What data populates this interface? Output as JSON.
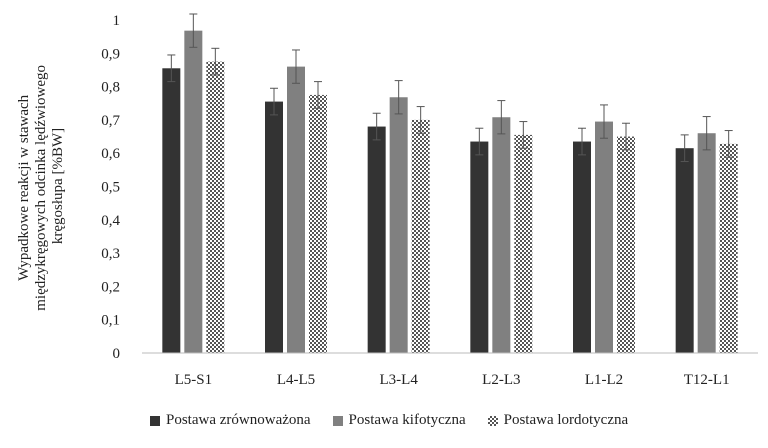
{
  "chart_data": {
    "type": "bar",
    "ylabel_lines": [
      "Wypadkowe reakcji w stawach",
      "międzykręgowych odcinka lędźwiowego",
      "kręgosłupa [%BW]"
    ],
    "categories": [
      "L5-S1",
      "L4-L5",
      "L3-L4",
      "L2-L3",
      "L1-L2",
      "T12-L1"
    ],
    "ylim": [
      0,
      1
    ],
    "yticks": [
      "0",
      "0,1",
      "0,2",
      "0,3",
      "0,4",
      "0,5",
      "0,6",
      "0,7",
      "0,8",
      "0,9",
      "1"
    ],
    "grid": false,
    "legend_position": "bottom",
    "series": [
      {
        "name": "Postawa zrównoważona",
        "color": "#333333",
        "pattern": "solid",
        "values": [
          0.855,
          0.755,
          0.68,
          0.635,
          0.635,
          0.615
        ],
        "errors": [
          0.04,
          0.04,
          0.04,
          0.04,
          0.04,
          0.04
        ]
      },
      {
        "name": "Postawa kifotyczna",
        "color": "#808080",
        "pattern": "solid",
        "values": [
          0.968,
          0.86,
          0.768,
          0.708,
          0.695,
          0.66
        ],
        "errors": [
          0.05,
          0.05,
          0.05,
          0.05,
          0.05,
          0.05
        ]
      },
      {
        "name": "Postawa lordotyczna",
        "color": "#555555",
        "pattern": "checker",
        "values": [
          0.875,
          0.775,
          0.7,
          0.655,
          0.65,
          0.628
        ],
        "errors": [
          0.04,
          0.04,
          0.04,
          0.04,
          0.04,
          0.04
        ]
      }
    ]
  }
}
